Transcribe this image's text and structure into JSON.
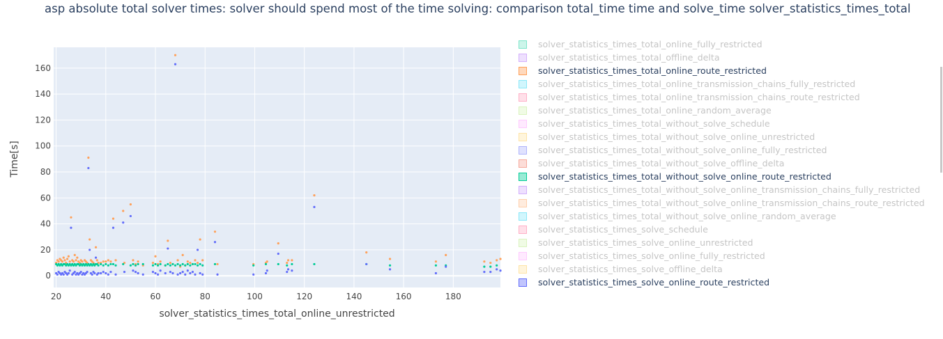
{
  "title": "asp absolute total solver times:  solver should spend most of the time solving: comparison total_time time and solve_time  solver_statistics_times_total",
  "chart_data": {
    "type": "scatter",
    "title": "asp absolute total solver times:  solver should spend most of the time solving: comparison total_time time and solve_time  solver_statistics_times_total",
    "xlabel": "solver_statistics_times_total_online_unrestricted",
    "ylabel": "Time[s]",
    "xlim": [
      19,
      199
    ],
    "ylim": [
      -9,
      176
    ],
    "x_ticks": [
      "20",
      "40",
      "60",
      "80",
      "100",
      "120",
      "140",
      "160",
      "180"
    ],
    "y_ticks": [
      "0",
      "20",
      "40",
      "60",
      "80",
      "100",
      "120",
      "140",
      "160"
    ],
    "grid": true,
    "legend_position": "right",
    "series": [
      {
        "name": "solver_statistics_times_total_online_route_restricted",
        "color": "#FFA15A",
        "x": [
          20,
          20.5,
          21,
          21.5,
          22,
          22.5,
          23,
          23.5,
          24,
          24.5,
          25,
          25.5,
          26,
          26.5,
          27,
          27.5,
          28,
          28.5,
          29,
          29.5,
          30,
          30.5,
          31,
          31.5,
          32,
          32.5,
          33,
          33.5,
          34,
          34.5,
          35,
          35.5,
          36,
          36.5,
          37,
          38,
          39,
          40,
          41,
          42,
          43,
          44,
          47,
          47.5,
          50,
          51,
          52,
          53,
          55,
          59,
          60,
          61,
          62,
          64,
          65,
          66,
          67,
          68,
          69,
          70,
          71,
          72,
          73,
          74,
          75,
          76,
          77,
          78,
          79,
          84,
          85,
          99.5,
          104.5,
          105,
          109.5,
          113,
          113.5,
          115,
          124,
          145,
          154.5,
          173,
          177,
          192.5,
          195,
          197.5,
          199
        ],
        "y": [
          10,
          12,
          11,
          13,
          12,
          11,
          14,
          12,
          10,
          13,
          15,
          11,
          45,
          12,
          11,
          16,
          12,
          14,
          11,
          10,
          12,
          11,
          9,
          12,
          11,
          10,
          91,
          28,
          12,
          11,
          10,
          9,
          22,
          12,
          10,
          10,
          11,
          11,
          12,
          11,
          44,
          12,
          50,
          10,
          55,
          12,
          9,
          11,
          8,
          10,
          15,
          9,
          11,
          8,
          27,
          10,
          9,
          170,
          12,
          7,
          16,
          8,
          11,
          10,
          9,
          12,
          10,
          28,
          12,
          34,
          9,
          9,
          10,
          11,
          25,
          10,
          12,
          12,
          62,
          18,
          13,
          11,
          16,
          11,
          10,
          12,
          13
        ]
      },
      {
        "name": "solver_statistics_times_total_without_solve_online_route_restricted",
        "color": "#00CC96",
        "x": [
          20,
          20.5,
          21,
          21.5,
          22,
          22.5,
          23,
          23.5,
          24,
          24.5,
          25,
          25.5,
          26,
          26.5,
          27,
          27.5,
          28,
          28.5,
          29,
          29.5,
          30,
          30.5,
          31,
          31.5,
          32,
          32.5,
          33,
          33.5,
          34,
          34.5,
          35,
          35.5,
          36,
          36.5,
          37,
          38,
          39,
          40,
          41,
          42,
          43,
          44,
          47,
          50,
          51,
          52,
          53,
          55,
          59,
          60,
          61,
          62,
          64,
          65,
          66,
          67,
          68,
          69,
          70,
          71,
          72,
          73,
          74,
          75,
          76,
          77,
          78,
          79,
          84,
          99.5,
          104.5,
          109.5,
          113,
          115,
          124,
          145,
          154.5,
          173,
          177,
          192.5,
          195,
          197.5
        ],
        "y": [
          9,
          8,
          9,
          8,
          9,
          8,
          9,
          9,
          8,
          9,
          8,
          9,
          8,
          9,
          8,
          9,
          8,
          9,
          9,
          8,
          9,
          8,
          9,
          8,
          9,
          8,
          9,
          8,
          9,
          8,
          9,
          8,
          9,
          9,
          8,
          9,
          8,
          9,
          8,
          9,
          9,
          8,
          9,
          8,
          9,
          8,
          9,
          9,
          8,
          9,
          8,
          9,
          8,
          9,
          8,
          9,
          8,
          9,
          8,
          9,
          8,
          9,
          8,
          9,
          9,
          8,
          9,
          8,
          9,
          8,
          9,
          9,
          8,
          9,
          9,
          9,
          8,
          8,
          8,
          7,
          7,
          8
        ]
      },
      {
        "name": "solver_statistics_times_solve_online_route_restricted",
        "color": "#636EFA",
        "x": [
          20,
          20.5,
          21,
          21.5,
          22,
          22.5,
          23,
          23.5,
          24,
          24.5,
          25,
          25.5,
          26,
          26.5,
          27,
          27.5,
          28,
          28.5,
          29,
          29.5,
          30,
          30.5,
          31,
          31.5,
          32,
          32.5,
          33,
          33.5,
          34,
          34.5,
          35,
          35.5,
          36,
          36.5,
          37,
          38,
          39,
          40,
          41,
          42,
          43,
          44,
          47,
          47.5,
          50,
          51,
          52,
          53,
          55,
          59,
          60,
          61,
          62,
          64,
          65,
          66,
          67,
          68,
          69,
          70,
          71,
          72,
          73,
          74,
          75,
          76,
          77,
          78,
          79,
          84,
          85,
          99.5,
          104.5,
          105,
          109.5,
          113,
          113.5,
          115,
          124,
          145,
          154.5,
          173,
          177,
          192.5,
          195,
          197.5,
          199
        ],
        "y": [
          2,
          1,
          3,
          2,
          1,
          2,
          1,
          3,
          2,
          1,
          2,
          4,
          37,
          1,
          2,
          3,
          1,
          2,
          1,
          2,
          3,
          1,
          2,
          1,
          2,
          3,
          83,
          20,
          2,
          1,
          3,
          2,
          14,
          1,
          2,
          2,
          3,
          2,
          1,
          3,
          37,
          1,
          41,
          3,
          46,
          4,
          3,
          2,
          1,
          3,
          2,
          1,
          4,
          2,
          21,
          3,
          2,
          163,
          1,
          2,
          3,
          1,
          4,
          2,
          3,
          1,
          20,
          2,
          1,
          26,
          1,
          1,
          2,
          4,
          17,
          3,
          5,
          4,
          53,
          9,
          5,
          2,
          7,
          3,
          3,
          5,
          4
        ]
      }
    ]
  },
  "legend": {
    "items": [
      {
        "label": "solver_statistics_times_total_online_fully_restricted",
        "color": "#00CC96",
        "visible": false
      },
      {
        "label": "solver_statistics_times_total_offline_delta",
        "color": "#AB63FA",
        "visible": false
      },
      {
        "label": "solver_statistics_times_total_online_route_restricted",
        "color": "#FFA15A",
        "visible": true
      },
      {
        "label": "solver_statistics_times_total_online_transmission_chains_fully_restricted",
        "color": "#19D3F3",
        "visible": false
      },
      {
        "label": "solver_statistics_times_total_online_transmission_chains_route_restricted",
        "color": "#FF6692",
        "visible": false
      },
      {
        "label": "solver_statistics_times_total_online_random_average",
        "color": "#B6E880",
        "visible": false
      },
      {
        "label": "solver_statistics_times_total_without_solve_schedule",
        "color": "#FF97FF",
        "visible": false
      },
      {
        "label": "solver_statistics_times_total_without_solve_online_unrestricted",
        "color": "#FECB52",
        "visible": false
      },
      {
        "label": "solver_statistics_times_total_without_solve_online_fully_restricted",
        "color": "#636EFA",
        "visible": false
      },
      {
        "label": "solver_statistics_times_total_without_solve_offline_delta",
        "color": "#EF553B",
        "visible": false
      },
      {
        "label": "solver_statistics_times_total_without_solve_online_route_restricted",
        "color": "#00CC96",
        "visible": true
      },
      {
        "label": "solver_statistics_times_total_without_solve_online_transmission_chains_fully_restricted",
        "color": "#AB63FA",
        "visible": false
      },
      {
        "label": "solver_statistics_times_total_without_solve_online_transmission_chains_route_restricted",
        "color": "#FFA15A",
        "visible": false
      },
      {
        "label": "solver_statistics_times_total_without_solve_online_random_average",
        "color": "#19D3F3",
        "visible": false
      },
      {
        "label": "solver_statistics_times_solve_schedule",
        "color": "#FF6692",
        "visible": false
      },
      {
        "label": "solver_statistics_times_solve_online_unrestricted",
        "color": "#B6E880",
        "visible": false
      },
      {
        "label": "solver_statistics_times_solve_online_fully_restricted",
        "color": "#FF97FF",
        "visible": false
      },
      {
        "label": "solver_statistics_times_solve_offline_delta",
        "color": "#FECB52",
        "visible": false
      },
      {
        "label": "solver_statistics_times_solve_online_route_restricted",
        "color": "#636EFA",
        "visible": true
      }
    ]
  }
}
